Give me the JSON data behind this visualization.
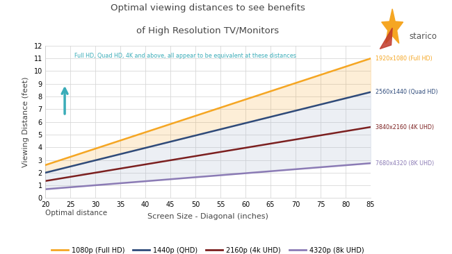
{
  "title_line1": "Optimal viewing distances to see benefits",
  "title_line2": "of High Resolution TV/Monitors",
  "xlabel": "Screen Size - Diagonal (inches)",
  "ylabel": "Viewing Distance (feet)",
  "legend_title": "Optimal distance",
  "xlim": [
    20,
    85
  ],
  "ylim": [
    0,
    12
  ],
  "xticks": [
    20,
    25,
    30,
    35,
    40,
    45,
    50,
    55,
    60,
    65,
    70,
    75,
    80,
    85
  ],
  "yticks": [
    0,
    1,
    2,
    3,
    4,
    5,
    6,
    7,
    8,
    9,
    10,
    11,
    12
  ],
  "slopes": [
    0.1292,
    0.0977,
    0.0654,
    0.0315
  ],
  "intercepts": [
    0.017,
    0.046,
    0.039,
    0.07
  ],
  "series": [
    {
      "name": "1080p (Full HD)",
      "label": "1920x1080 (Full HD)",
      "color": "#f5a623",
      "fill_above_color": "#f5a623",
      "fill_above_alpha": 0.18
    },
    {
      "name": "1440p (QHD)",
      "label": "2560x1440 (Quad HD)",
      "color": "#2e4a7a",
      "fill_below_color": "#aab8d0",
      "fill_below_alpha": 0.22
    },
    {
      "name": "2160p (4k UHD)",
      "label": "3840x2160 (4K UHD)",
      "color": "#7b1f1f"
    },
    {
      "name": "4320p (8k UHD)",
      "label": "7680x4320 (8K UHD)",
      "color": "#8b7bb5"
    }
  ],
  "annotation_text": "Full HD, Quad HD, 4K and above, all appear to be equivalent at these distances",
  "annotation_color": "#3aacb8",
  "background_color": "#ffffff",
  "grid_color": "#d8d8d8",
  "title_color": "#444444",
  "label_color": "#444444",
  "starico_color": "#555555",
  "star_outer_color": "#f5a623",
  "star_inner_color": "#c0392b"
}
